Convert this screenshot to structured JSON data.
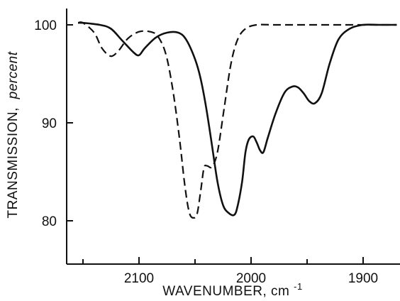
{
  "chart_data": {
    "type": "line",
    "title": "",
    "xlabel": "WAVENUMBER, cm",
    "xlabel_superscript": "-1",
    "ylabel": "TRANSMISSION,",
    "ylabel_unit": "percent",
    "xlim": [
      2160,
      1870
    ],
    "ylim": [
      76.5,
      102
    ],
    "x_axis_reversed": true,
    "grid": false,
    "xticks": [
      2100,
      2000,
      1900
    ],
    "xtick_labels": [
      "2100",
      "2000",
      "1900"
    ],
    "xminor_ticks": [
      2150,
      2050,
      1950
    ],
    "yticks": [
      100,
      90,
      80
    ],
    "ytick_labels": [
      "100",
      "90",
      "80"
    ],
    "series": [
      {
        "style": "solid",
        "points": [
          [
            2160,
            100.2
          ],
          [
            2150,
            100.2
          ],
          [
            2135,
            100.0
          ],
          [
            2125,
            99.6
          ],
          [
            2115,
            98.4
          ],
          [
            2105,
            97.2
          ],
          [
            2100,
            96.9
          ],
          [
            2095,
            97.6
          ],
          [
            2085,
            98.7
          ],
          [
            2075,
            99.2
          ],
          [
            2065,
            99.2
          ],
          [
            2058,
            98.5
          ],
          [
            2050,
            96.5
          ],
          [
            2045,
            94.5
          ],
          [
            2040,
            91.5
          ],
          [
            2035,
            87.8
          ],
          [
            2030,
            84.0
          ],
          [
            2025,
            81.6
          ],
          [
            2020,
            80.8
          ],
          [
            2015,
            80.6
          ],
          [
            2012,
            81.5
          ],
          [
            2008,
            84.0
          ],
          [
            2005,
            87.0
          ],
          [
            2002,
            88.3
          ],
          [
            1998,
            88.6
          ],
          [
            1995,
            88.0
          ],
          [
            1992,
            87.2
          ],
          [
            1989,
            87.0
          ],
          [
            1985,
            88.5
          ],
          [
            1978,
            91.0
          ],
          [
            1970,
            93.1
          ],
          [
            1963,
            93.7
          ],
          [
            1958,
            93.6
          ],
          [
            1953,
            93.0
          ],
          [
            1948,
            92.2
          ],
          [
            1943,
            92.0
          ],
          [
            1937,
            93.0
          ],
          [
            1930,
            96.0
          ],
          [
            1922,
            98.5
          ],
          [
            1912,
            99.6
          ],
          [
            1900,
            100.0
          ],
          [
            1885,
            100.0
          ],
          [
            1870,
            100.0
          ]
        ]
      },
      {
        "style": "dashed",
        "points": [
          [
            2160,
            100.2
          ],
          [
            2150,
            100.2
          ],
          [
            2140,
            99.2
          ],
          [
            2133,
            97.6
          ],
          [
            2125,
            96.8
          ],
          [
            2118,
            97.4
          ],
          [
            2110,
            98.6
          ],
          [
            2100,
            99.3
          ],
          [
            2090,
            99.3
          ],
          [
            2083,
            98.8
          ],
          [
            2076,
            97.0
          ],
          [
            2070,
            93.5
          ],
          [
            2064,
            88.5
          ],
          [
            2059,
            83.5
          ],
          [
            2055,
            80.8
          ],
          [
            2051,
            80.3
          ],
          [
            2048,
            80.8
          ],
          [
            2045,
            83.0
          ],
          [
            2042,
            85.4
          ],
          [
            2039,
            85.6
          ],
          [
            2035,
            85.5
          ],
          [
            2030,
            87.0
          ],
          [
            2024,
            91.5
          ],
          [
            2018,
            96.0
          ],
          [
            2012,
            98.5
          ],
          [
            2005,
            99.6
          ],
          [
            1995,
            100.0
          ],
          [
            1980,
            100.0
          ],
          [
            1960,
            100.0
          ],
          [
            1940,
            100.0
          ],
          [
            1920,
            100.0
          ],
          [
            1900,
            100.0
          ],
          [
            1885,
            100.0
          ],
          [
            1870,
            100.0
          ]
        ]
      }
    ]
  }
}
